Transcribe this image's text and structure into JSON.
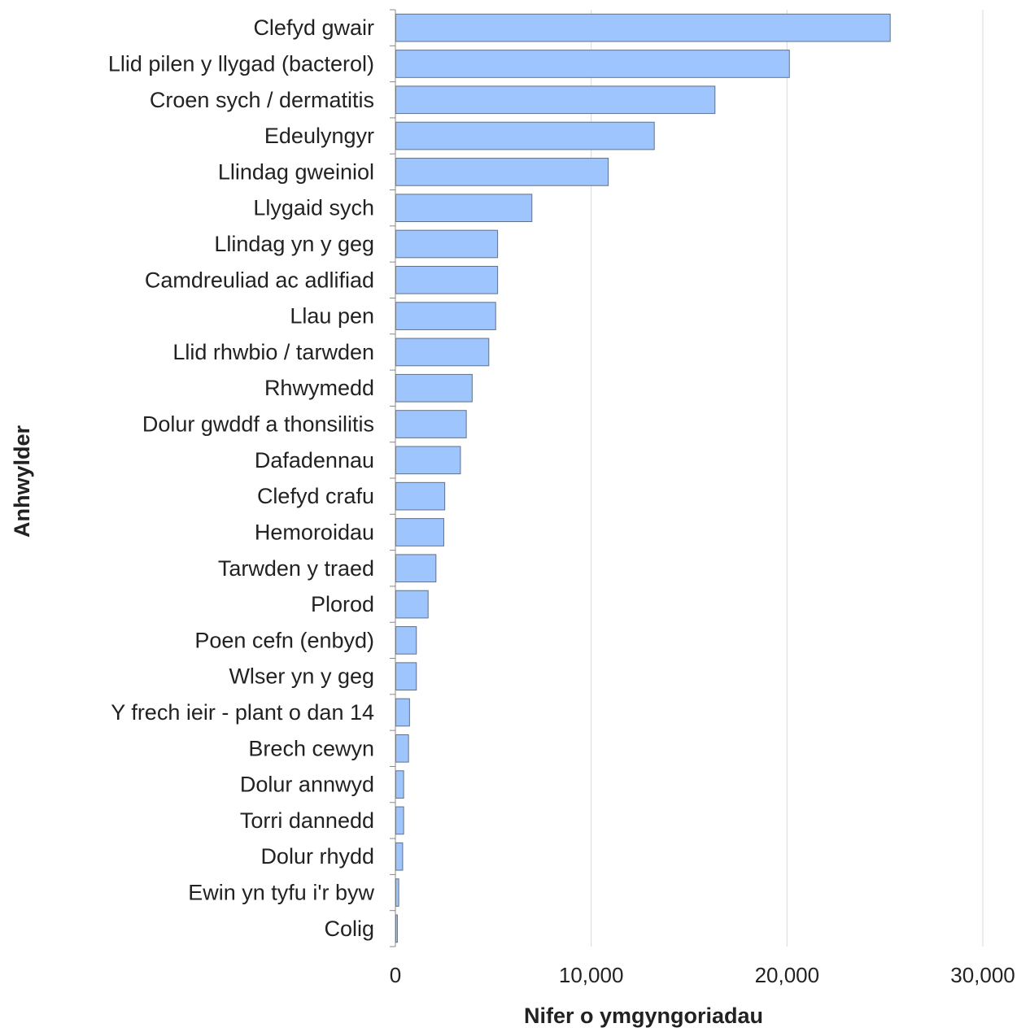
{
  "chart_data": {
    "type": "bar",
    "orientation": "horizontal",
    "title": "",
    "xlabel": "Nifer o ymgyngoriadau",
    "ylabel": "Anhwylder",
    "xlim": [
      0,
      30000
    ],
    "xticks": [
      0,
      10000,
      20000,
      30000
    ],
    "xtick_labels": [
      "0",
      "10,000",
      "20,000",
      "30,000"
    ],
    "grid": "vertical",
    "legend": "none",
    "categories": [
      "Clefyd gwair",
      "Llid pilen y llygad (bacterol)",
      "Croen sych / dermatitis",
      "Edeulyngyr",
      "Llindag gweiniol",
      "Llygaid sych",
      "Llindag yn y geg",
      "Camdreuliad ac adlifiad",
      "Llau pen",
      "Llid rhwbio / tarwden",
      "Rhwymedd",
      "Dolur gwddf a thonsilitis",
      "Dafadennau",
      "Clefyd crafu",
      "Hemoroidau",
      "Tarwden y traed",
      "Plorod",
      "Poen cefn (enbyd)",
      "Wlser yn y geg",
      "Y frech ieir - plant o dan 14",
      "Brech cewyn",
      "Dolur annwyd",
      "Torri dannedd",
      "Dolur rhydd",
      "Ewin yn tyfu i'r byw",
      "Colig"
    ],
    "values": [
      25250,
      20100,
      16300,
      13200,
      10850,
      6950,
      5200,
      5200,
      5100,
      4750,
      3900,
      3600,
      3300,
      2500,
      2450,
      2050,
      1650,
      1050,
      1050,
      700,
      650,
      400,
      400,
      350,
      150,
      80
    ],
    "colors": {
      "bar_fill": "#9FC5FE",
      "bar_stroke": "#5F7187",
      "grid": "#D9D9D9",
      "axis": "#888888"
    }
  }
}
